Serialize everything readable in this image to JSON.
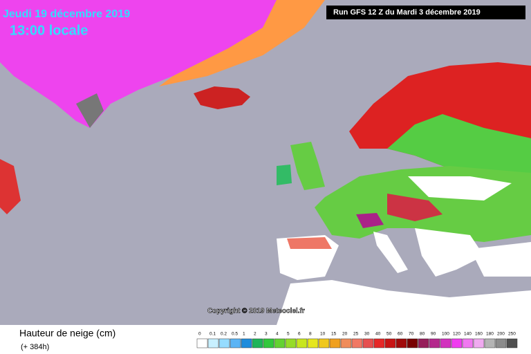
{
  "header": {
    "date": "Jeudi 19 décembre 2019",
    "time": "13:00 locale",
    "run": "Run GFS 12 Z du Mardi 3 décembre 2019"
  },
  "copyright": "Copyright © 2019 Meteociel.fr",
  "footer": {
    "title": "Hauteur de neige (cm)",
    "lead": "(+ 384h)"
  },
  "legend": [
    {
      "label": "0",
      "color": "#ffffff"
    },
    {
      "label": "0.1",
      "color": "#c8f0ff"
    },
    {
      "label": "0.2",
      "color": "#96dcff"
    },
    {
      "label": "0.5",
      "color": "#5ab4f5"
    },
    {
      "label": "1",
      "color": "#1e8cdc"
    },
    {
      "label": "2",
      "color": "#1eb45a"
    },
    {
      "label": "3",
      "color": "#32c83c"
    },
    {
      "label": "4",
      "color": "#64d232"
    },
    {
      "label": "5",
      "color": "#96dc28"
    },
    {
      "label": "6",
      "color": "#c8e61e"
    },
    {
      "label": "8",
      "color": "#e6e61e"
    },
    {
      "label": "10",
      "color": "#f0c81e"
    },
    {
      "label": "15",
      "color": "#f0a01e"
    },
    {
      "label": "20",
      "color": "#f08c5a"
    },
    {
      "label": "25",
      "color": "#f07864"
    },
    {
      "label": "30",
      "color": "#e65050"
    },
    {
      "label": "40",
      "color": "#e62828"
    },
    {
      "label": "50",
      "color": "#c81414"
    },
    {
      "label": "60",
      "color": "#a00a0a"
    },
    {
      "label": "70",
      "color": "#780000"
    },
    {
      "label": "80",
      "color": "#961e5a"
    },
    {
      "label": "90",
      "color": "#b4288c"
    },
    {
      "label": "100",
      "color": "#d232be"
    },
    {
      "label": "120",
      "color": "#f03cf0"
    },
    {
      "label": "140",
      "color": "#f078f0"
    },
    {
      "label": "160",
      "color": "#f0aaf0"
    },
    {
      "label": "180",
      "color": "#b4b4b4"
    },
    {
      "label": "200",
      "color": "#8c8c8c"
    },
    {
      "label": "250",
      "color": "#505050"
    }
  ]
}
